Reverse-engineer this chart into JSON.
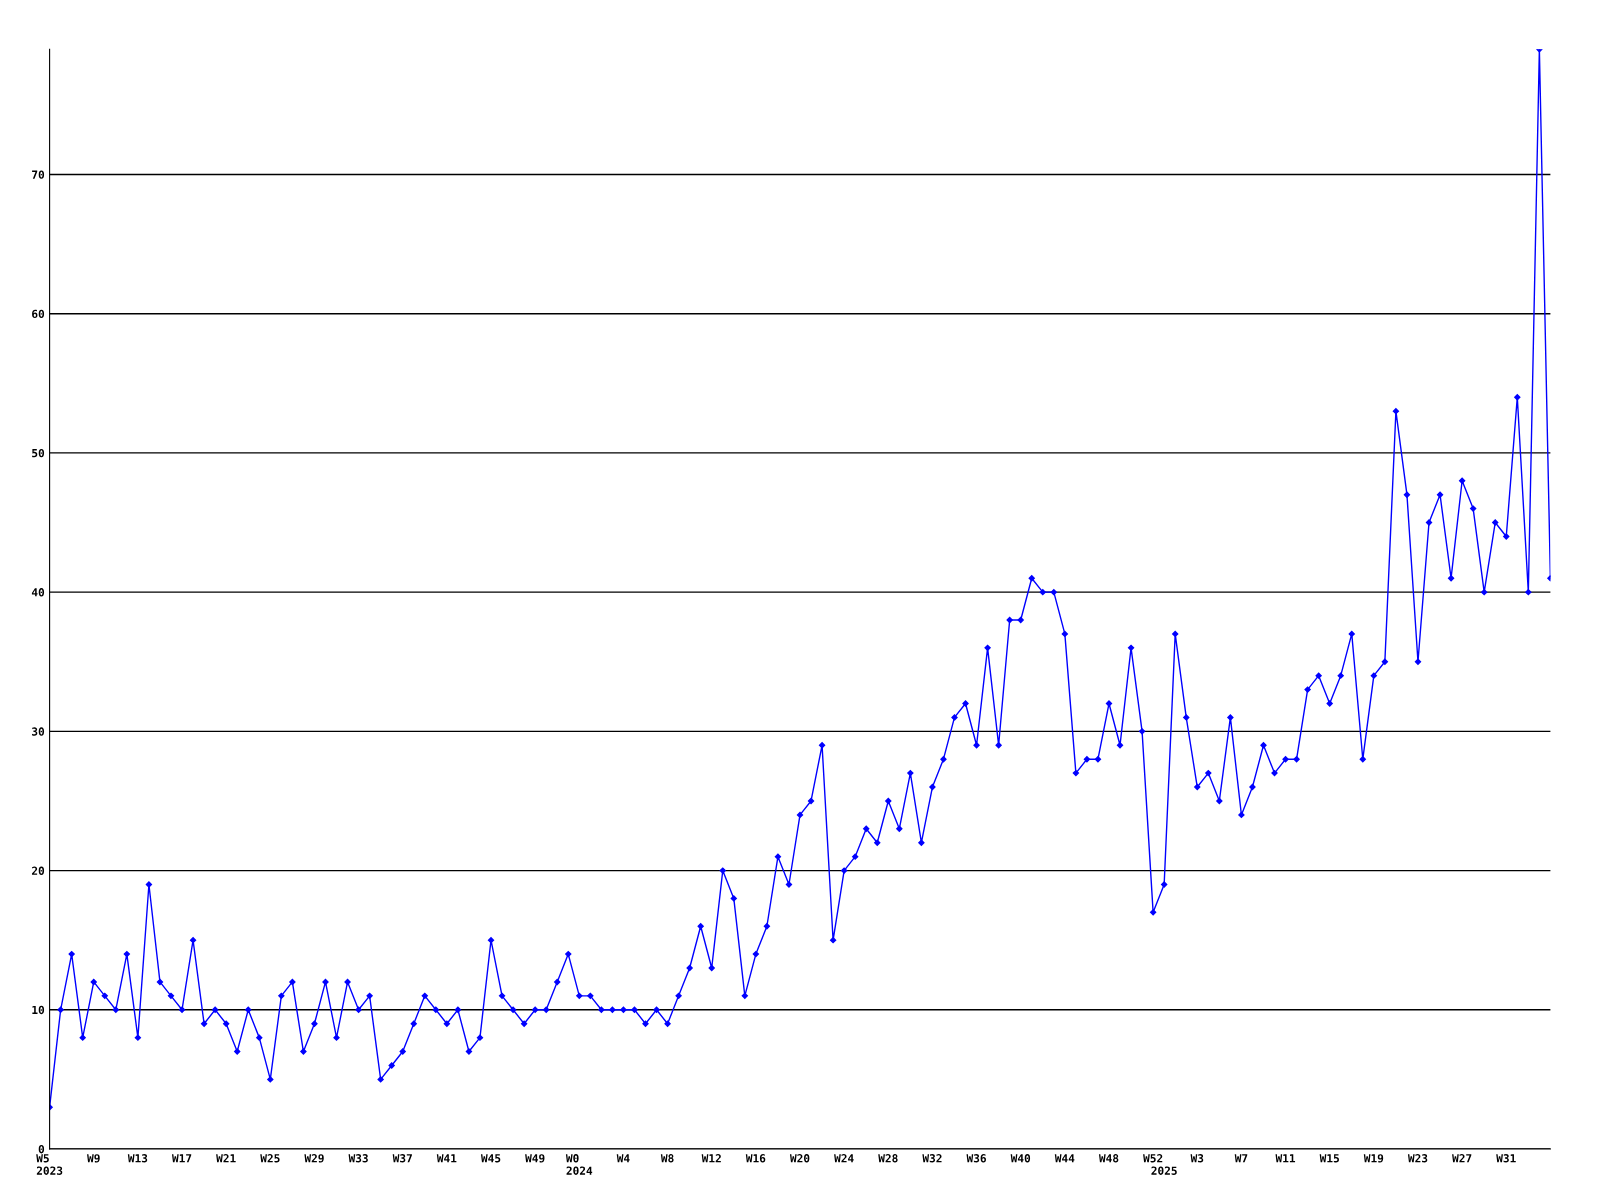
{
  "chart_data": {
    "type": "line",
    "categories": [
      "W5\n2023",
      null,
      null,
      null,
      "W9",
      null,
      null,
      null,
      "W13",
      null,
      null,
      null,
      "W17",
      null,
      null,
      null,
      "W21",
      null,
      null,
      null,
      "W25",
      null,
      null,
      null,
      "W29",
      null,
      null,
      null,
      "W33",
      null,
      null,
      null,
      "W37",
      null,
      null,
      null,
      "W41",
      null,
      null,
      null,
      "W45",
      null,
      null,
      null,
      "W49",
      null,
      null,
      null,
      "W0\n2024",
      null,
      null,
      null,
      "W4",
      null,
      null,
      null,
      "W8",
      null,
      null,
      null,
      "W12",
      null,
      null,
      null,
      "W16",
      null,
      null,
      null,
      "W20",
      null,
      null,
      null,
      "W24",
      null,
      null,
      null,
      "W28",
      null,
      null,
      null,
      "W32",
      null,
      null,
      null,
      "W36",
      null,
      null,
      null,
      "W40",
      null,
      null,
      null,
      "W44",
      null,
      null,
      null,
      "W48",
      null,
      null,
      null,
      "W52",
      "\n2025",
      null,
      null,
      "W3",
      null,
      null,
      null,
      "W7",
      null,
      null,
      null,
      "W11",
      null,
      null,
      null,
      "W15",
      null,
      null,
      null,
      "W19",
      null,
      null,
      null,
      "W23",
      null,
      null,
      null,
      "W27",
      null,
      null,
      null,
      "W31",
      null,
      null,
      null,
      null
    ],
    "series": [
      {
        "color": "#0000ff",
        "values": [
          3,
          10,
          14,
          8,
          12,
          11,
          10,
          14,
          8,
          19,
          12,
          11,
          10,
          15,
          9,
          10,
          9,
          7,
          10,
          8,
          5,
          11,
          12,
          7,
          9,
          12,
          8,
          12,
          10,
          11,
          5,
          6,
          7,
          9,
          11,
          10,
          9,
          10,
          7,
          8,
          15,
          11,
          10,
          9,
          10,
          10,
          12,
          14,
          11,
          11,
          10,
          10,
          10,
          10,
          9,
          10,
          9,
          11,
          13,
          16,
          13,
          20,
          18,
          11,
          14,
          16,
          21,
          19,
          24,
          25,
          29,
          15,
          20,
          21,
          23,
          22,
          25,
          23,
          27,
          22,
          26,
          28,
          31,
          32,
          29,
          36,
          29,
          38,
          38,
          41,
          40,
          40,
          37,
          27,
          28,
          28,
          32,
          29,
          36,
          30,
          17,
          19,
          37,
          31,
          26,
          27,
          25,
          31,
          24,
          26,
          29,
          27,
          28,
          28,
          33,
          34,
          32,
          34,
          37,
          28,
          34,
          35,
          53,
          47,
          35,
          45,
          47,
          41,
          48,
          46,
          40,
          45,
          44,
          54,
          40,
          79,
          41
        ]
      }
    ],
    "ylim": [
      0,
      79
    ],
    "yticks": [
      0,
      10,
      20,
      30,
      40,
      50,
      60,
      70
    ],
    "grid": "y",
    "marker": "diamond",
    "line_style": "solid",
    "legend": false
  }
}
